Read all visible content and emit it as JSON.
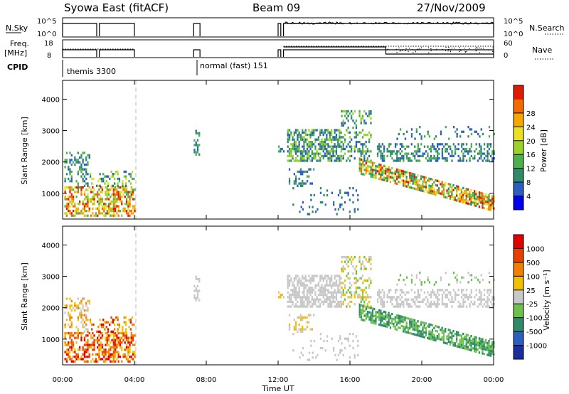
{
  "header": {
    "title": "Syowa East (fitACF)",
    "beam": "Beam 09",
    "date": "27/Nov/2009"
  },
  "top_panels": {
    "nsky_label": "N.Sky",
    "nsky_ticks": [
      "10^5",
      "10^0"
    ],
    "nsearch_label": "N.Search",
    "nsearch_ticks": [
      "10^5",
      "10^0"
    ],
    "freq_label_1": "Freq.",
    "freq_label_2": "[MHz]",
    "freq_ticks": [
      "18",
      "8"
    ],
    "nave_label": "Nave",
    "nave_ticks": [
      "60",
      "0"
    ],
    "cpid_label": "CPID",
    "cpid_1": "themis 3300",
    "cpid_2": "normal (fast) 151"
  },
  "chart_data": {
    "type": "heatmap",
    "xlabel": "Time UT",
    "x_ticks": [
      "00:00",
      "04:00",
      "08:00",
      "12:00",
      "16:00",
      "20:00",
      "00:00"
    ],
    "xlim_hours": [
      0,
      24
    ],
    "ylabel": "Slant Range [km]",
    "y_ticks": [
      1000,
      2000,
      3000,
      4000
    ],
    "ylim_km": [
      180,
      4600
    ],
    "panels": [
      {
        "name": "power",
        "colorbar_label": "Power [dB]",
        "colorbar_ticks": [
          "4",
          "8",
          "12",
          "16",
          "20",
          "24",
          "28"
        ],
        "colorbar_colors": [
          "#0000ee",
          "#2a5fc0",
          "#2e8a6a",
          "#4cb04c",
          "#9ad22a",
          "#e9e020",
          "#f5a800",
          "#f56a00",
          "#e01a00"
        ]
      },
      {
        "name": "velocity",
        "colorbar_label": "Velocity [m s⁻¹]",
        "colorbar_ticks": [
          "1000",
          "500",
          "100",
          "25",
          "-25",
          "-100",
          "-500",
          "-1000"
        ],
        "colorbar_colors": [
          "#1a2ea0",
          "#2a5fc0",
          "#2e8a6a",
          "#6cc04c",
          "#c8c8c8",
          "#f0c000",
          "#f08000",
          "#e84000",
          "#e00000"
        ]
      }
    ]
  }
}
